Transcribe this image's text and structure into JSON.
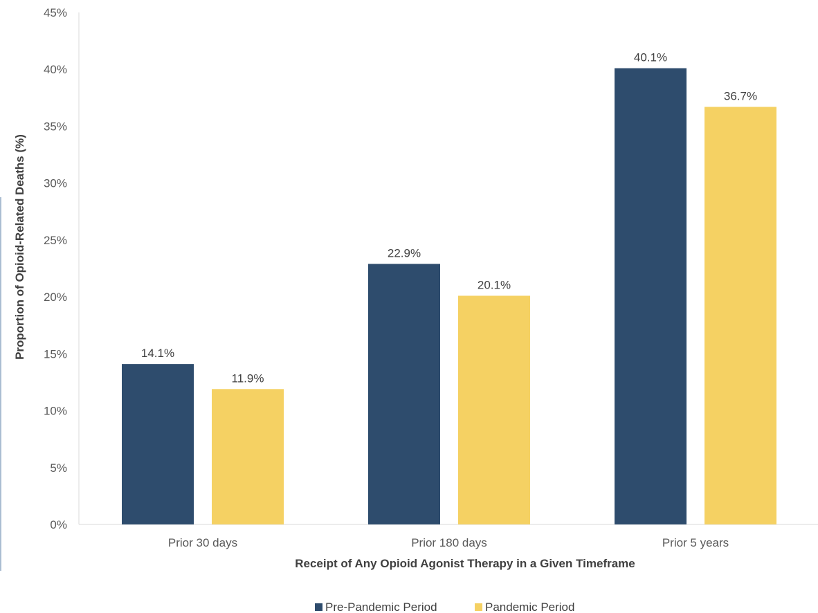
{
  "chart_data": {
    "type": "bar",
    "categories": [
      "Prior 30 days",
      "Prior 180 days",
      "Prior 5 years"
    ],
    "series": [
      {
        "name": "Pre-Pandemic Period",
        "color": "#2e4c6d",
        "values": [
          14.1,
          22.9,
          40.1
        ],
        "labels": [
          "14.1%",
          "22.9%",
          "40.1%"
        ]
      },
      {
        "name": "Pandemic Period",
        "color": "#f5d163",
        "values": [
          11.9,
          20.1,
          36.7
        ],
        "labels": [
          "11.9%",
          "20.1%",
          "36.7%"
        ]
      }
    ],
    "xlabel": "Receipt of Any Opioid Agonist Therapy in a Given Timeframe",
    "ylabel": "Proportion of Opioid-Related Deaths (%)",
    "ylim": [
      0,
      45
    ],
    "yticks": [
      "0%",
      "5%",
      "10%",
      "15%",
      "20%",
      "25%",
      "30%",
      "35%",
      "40%",
      "45%"
    ],
    "grid": false,
    "legend_position": "bottom"
  }
}
